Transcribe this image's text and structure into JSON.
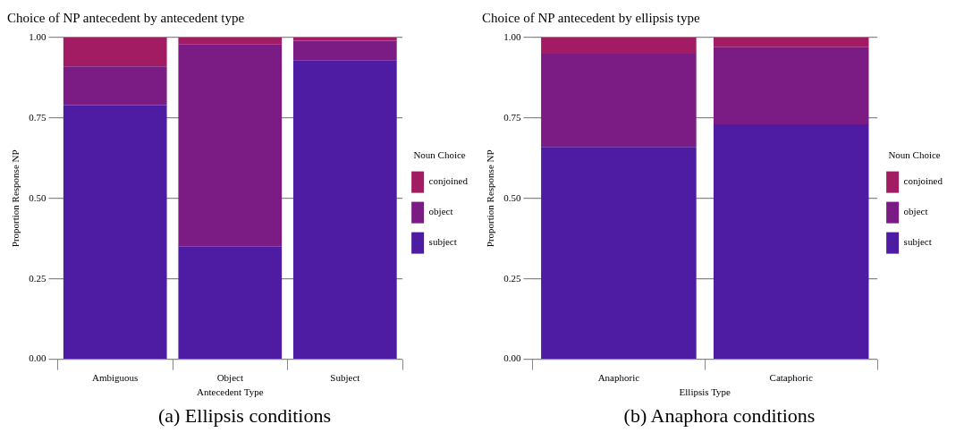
{
  "chart_data": [
    {
      "type": "bar",
      "title": "Choice of NP antecedent by antecedent type",
      "xlabel": "Antecedent Type",
      "ylabel": "Proportion Response NP",
      "legend_title": "Noun Choice",
      "categories": [
        "Ambiguous",
        "Object",
        "Subject"
      ],
      "series": [
        {
          "name": "subject",
          "color": "#4e1ca2",
          "values": [
            0.79,
            0.35,
            0.93
          ]
        },
        {
          "name": "object",
          "color": "#7a1c84",
          "values": [
            0.12,
            0.63,
            0.06
          ]
        },
        {
          "name": "conjoined",
          "color": "#a21c64",
          "values": [
            0.09,
            0.02,
            0.01
          ]
        }
      ],
      "stacked": true,
      "ylim": [
        0,
        1
      ],
      "yticks": [
        {
          "value": 0,
          "label": "0.00"
        },
        {
          "value": 0.25,
          "label": "0.25"
        },
        {
          "value": 0.5,
          "label": "0.50"
        },
        {
          "value": 0.75,
          "label": "0.75"
        },
        {
          "value": 1,
          "label": "1.00"
        }
      ],
      "grid": "y",
      "legend": "right",
      "annotations": [
        "(a) Ellipsis conditions"
      ]
    },
    {
      "type": "bar",
      "title": "Choice of NP antecedent by ellipsis type",
      "xlabel": "Ellipsis Type",
      "ylabel": "Proportion Response NP",
      "legend_title": "Noun Choice",
      "categories": [
        "Anaphoric",
        "Cataphoric"
      ],
      "series": [
        {
          "name": "subject",
          "color": "#4e1ca2",
          "values": [
            0.66,
            0.73
          ]
        },
        {
          "name": "object",
          "color": "#7a1c84",
          "values": [
            0.29,
            0.24
          ]
        },
        {
          "name": "conjoined",
          "color": "#a21c64",
          "values": [
            0.05,
            0.03
          ]
        }
      ],
      "stacked": true,
      "ylim": [
        0,
        1
      ],
      "yticks": [
        {
          "value": 0,
          "label": "0.00"
        },
        {
          "value": 0.25,
          "label": "0.25"
        },
        {
          "value": 0.5,
          "label": "0.50"
        },
        {
          "value": 0.75,
          "label": "0.75"
        },
        {
          "value": 1,
          "label": "1.00"
        }
      ],
      "grid": "y",
      "legend": "right",
      "annotations": [
        "(b) Anaphora conditions"
      ]
    }
  ]
}
